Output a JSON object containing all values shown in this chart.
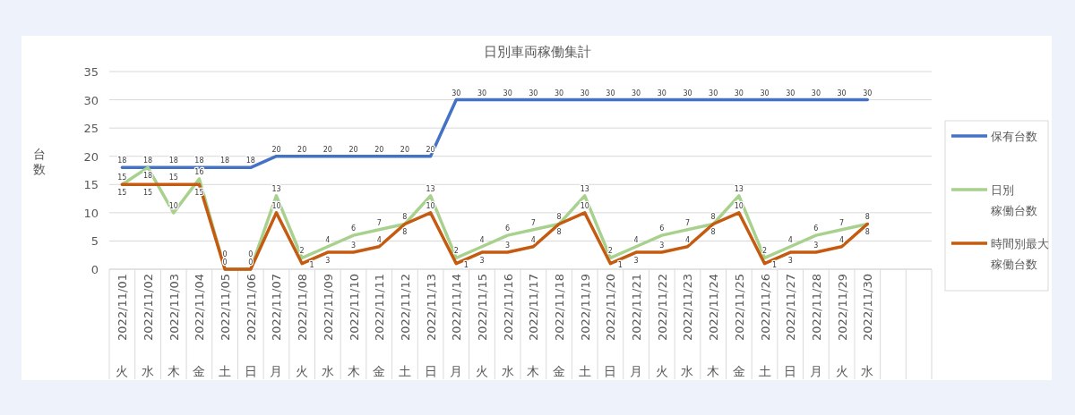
{
  "chart_data": {
    "type": "line",
    "title": "日別車両稼働集計",
    "ylabel": "台数",
    "categories": [
      "2022/11/01\n火",
      "2022/11/02\n水",
      "2022/11/03\n木",
      "2022/11/04\n金",
      "2022/11/05\n土",
      "2022/11/06\n日",
      "2022/11/07\n月",
      "2022/11/08\n火",
      "2022/11/09\n水",
      "2022/11/10\n木",
      "2022/11/11\n金",
      "2022/11/12\n土",
      "2022/11/13\n日",
      "2022/11/14\n月",
      "2022/11/15\n火",
      "2022/11/16\n水",
      "2022/11/17\n木",
      "2022/11/18\n金",
      "2022/11/19\n土",
      "2022/11/20\n日",
      "2022/11/21\n月",
      "2022/11/22\n火",
      "2022/11/23\n水",
      "2022/11/24\n木",
      "2022/11/25\n金",
      "2022/11/26\n土",
      "2022/11/27\n日",
      "2022/11/28\n月",
      "2022/11/29\n火",
      "2022/11/30\n水",
      null,
      null
    ],
    "series": [
      {
        "name": "保有台数",
        "color": "#4472c4",
        "values": [
          18,
          18,
          18,
          18,
          18,
          18,
          20,
          20,
          20,
          20,
          20,
          20,
          20,
          30,
          30,
          30,
          30,
          30,
          30,
          30,
          30,
          30,
          30,
          30,
          30,
          30,
          30,
          30,
          30,
          30,
          null,
          null
        ]
      },
      {
        "name": "日別稼働台数",
        "color": "#a9d18e",
        "values": [
          15,
          18,
          10,
          16,
          0,
          0,
          13,
          2,
          4,
          6,
          7,
          8,
          13,
          2,
          4,
          6,
          7,
          8,
          13,
          2,
          4,
          6,
          7,
          8,
          13,
          2,
          4,
          6,
          7,
          8,
          null,
          null
        ]
      },
      {
        "name": "時間別最大稼働台数",
        "color": "#c55a11",
        "values": [
          15,
          15,
          15,
          15,
          0,
          0,
          10,
          1,
          3,
          3,
          4,
          8,
          10,
          1,
          3,
          3,
          4,
          8,
          10,
          1,
          3,
          3,
          4,
          8,
          10,
          1,
          3,
          3,
          4,
          8,
          null,
          null
        ]
      }
    ],
    "ylim": [
      0,
      35
    ],
    "yticks": [
      0,
      5,
      10,
      15,
      20,
      25,
      30,
      35
    ],
    "grid": "y",
    "legend": "right",
    "data_labels": true,
    "marker": "none",
    "line_style": "solid"
  }
}
